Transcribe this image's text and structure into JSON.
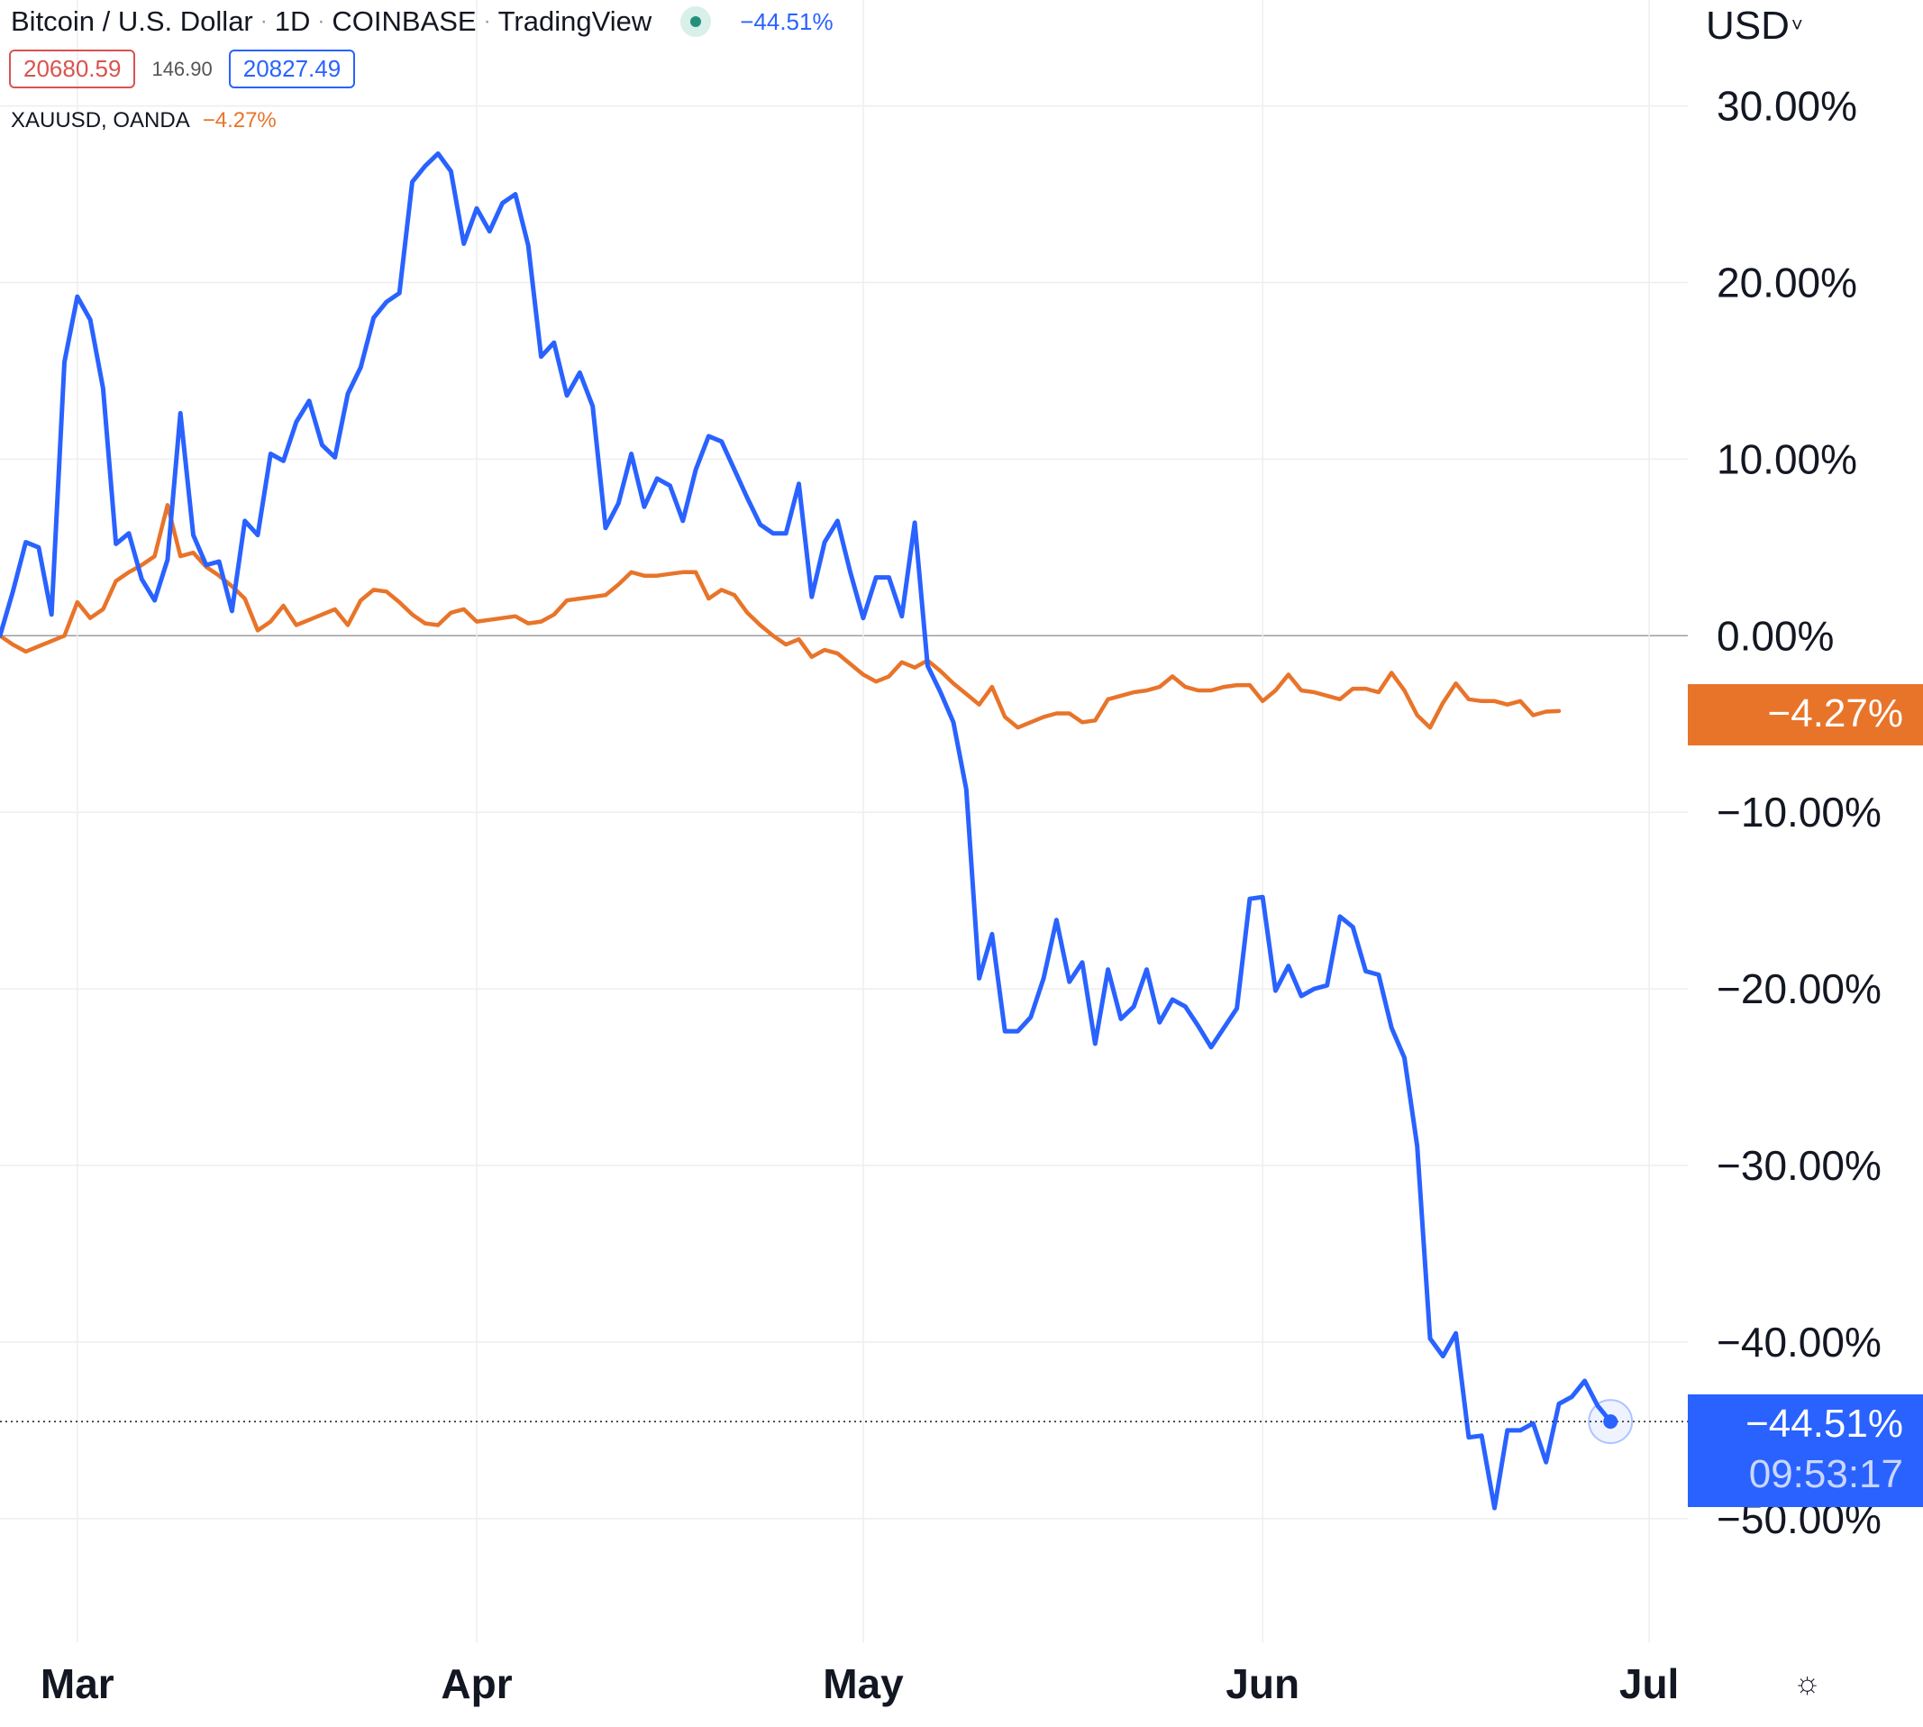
{
  "header": {
    "symbol": "Bitcoin / U.S. Dollar",
    "interval": "1D",
    "exchange": "COINBASE",
    "source": "TradingView",
    "change": "−44.51%",
    "bid": "20680.59",
    "spread": "146.90",
    "ask": "20827.49",
    "compare_symbol": "XAUUSD, OANDA",
    "compare_change": "−4.27%",
    "currency": "USD",
    "currency_caret": "˅"
  },
  "badges": {
    "gold_value": "−4.27%",
    "btc_value": "−44.51%",
    "btc_countdown": "09:53:17"
  },
  "settings_icon": "gear-icon",
  "colors": {
    "btc": "#2962ff",
    "gold": "#e8742a",
    "grid": "#eeeeee",
    "zero": "#9e9e9e"
  },
  "chart_data": {
    "type": "line",
    "x_unit": "days since Feb 22",
    "xlim": [
      0,
      131
    ],
    "ylim": [
      -57,
      36
    ],
    "grid": true,
    "y_ticks": [
      30,
      20,
      10,
      0,
      -10,
      -20,
      -30,
      -40,
      -50
    ],
    "y_tick_labels": [
      "30.00%",
      "20.00%",
      "10.00%",
      "0.00%",
      "−10.00%",
      "−20.00%",
      "−30.00%",
      "−40.00%",
      "−50.00%"
    ],
    "x_tick_labels": [
      {
        "label": "Mar",
        "x": 6
      },
      {
        "label": "Apr",
        "x": 37
      },
      {
        "label": "May",
        "x": 67
      },
      {
        "label": "Jun",
        "x": 98
      },
      {
        "label": "Jul",
        "x": 128
      }
    ],
    "series": [
      {
        "name": "Bitcoin / U.S. Dollar",
        "color": "#2962ff",
        "points": [
          [
            0,
            0
          ],
          [
            1,
            2.5
          ],
          [
            2,
            5.3
          ],
          [
            3,
            5
          ],
          [
            4,
            1.2
          ],
          [
            5,
            15.5
          ],
          [
            6,
            19.2
          ],
          [
            7,
            17.9
          ],
          [
            8,
            14
          ],
          [
            9,
            5.2
          ],
          [
            10,
            5.8
          ],
          [
            11,
            3.2
          ],
          [
            12,
            2
          ],
          [
            13,
            4.3
          ],
          [
            14,
            12.6
          ],
          [
            15,
            5.7
          ],
          [
            16,
            4
          ],
          [
            17,
            4.2
          ],
          [
            18,
            1.4
          ],
          [
            19,
            6.5
          ],
          [
            20,
            5.7
          ],
          [
            21,
            10.3
          ],
          [
            22,
            9.9
          ],
          [
            23,
            12.1
          ],
          [
            24,
            13.3
          ],
          [
            25,
            10.8
          ],
          [
            26,
            10.1
          ],
          [
            27,
            13.7
          ],
          [
            28,
            15.2
          ],
          [
            29,
            18
          ],
          [
            30,
            18.9
          ],
          [
            31,
            19.4
          ],
          [
            32,
            25.7
          ],
          [
            33,
            26.6
          ],
          [
            34,
            27.3
          ],
          [
            35,
            26.3
          ],
          [
            36,
            22.2
          ],
          [
            37,
            24.2
          ],
          [
            38,
            22.9
          ],
          [
            39,
            24.5
          ],
          [
            40,
            25
          ],
          [
            41,
            22.1
          ],
          [
            42,
            15.8
          ],
          [
            43,
            16.6
          ],
          [
            44,
            13.6
          ],
          [
            45,
            14.9
          ],
          [
            46,
            13
          ],
          [
            47,
            6.1
          ],
          [
            48,
            7.5
          ],
          [
            49,
            10.3
          ],
          [
            50,
            7.3
          ],
          [
            51,
            8.9
          ],
          [
            52,
            8.5
          ],
          [
            53,
            6.5
          ],
          [
            54,
            9.4
          ],
          [
            55,
            11.3
          ],
          [
            56,
            11
          ],
          [
            57,
            9.4
          ],
          [
            58,
            7.8
          ],
          [
            59,
            6.3
          ],
          [
            60,
            5.8
          ],
          [
            61,
            5.8
          ],
          [
            62,
            8.6
          ],
          [
            63,
            2.2
          ],
          [
            64,
            5.3
          ],
          [
            65,
            6.5
          ],
          [
            66,
            3.6
          ],
          [
            67,
            1
          ],
          [
            68,
            3.3
          ],
          [
            69,
            3.3
          ],
          [
            70,
            1.1
          ],
          [
            71,
            6.4
          ],
          [
            72,
            -1.7
          ],
          [
            73,
            -3.2
          ],
          [
            74,
            -4.9
          ],
          [
            75,
            -8.7
          ],
          [
            76,
            -19.4
          ],
          [
            77,
            -16.9
          ],
          [
            78,
            -22.4
          ],
          [
            79,
            -22.4
          ],
          [
            80,
            -21.6
          ],
          [
            81,
            -19.4
          ],
          [
            82,
            -16.1
          ],
          [
            83,
            -19.6
          ],
          [
            84,
            -18.5
          ],
          [
            85,
            -23.1
          ],
          [
            86,
            -18.9
          ],
          [
            87,
            -21.7
          ],
          [
            88,
            -21
          ],
          [
            89,
            -18.9
          ],
          [
            90,
            -21.9
          ],
          [
            91,
            -20.6
          ],
          [
            92,
            -21
          ],
          [
            93,
            -22.1
          ],
          [
            94,
            -23.3
          ],
          [
            95,
            -22.2
          ],
          [
            96,
            -21.1
          ],
          [
            97,
            -14.9
          ],
          [
            98,
            -14.8
          ],
          [
            99,
            -20.1
          ],
          [
            100,
            -18.7
          ],
          [
            101,
            -20.4
          ],
          [
            102,
            -20
          ],
          [
            103,
            -19.8
          ],
          [
            104,
            -15.9
          ],
          [
            105,
            -16.5
          ],
          [
            106,
            -19
          ],
          [
            107,
            -19.2
          ],
          [
            108,
            -22.2
          ],
          [
            109,
            -23.9
          ],
          [
            110,
            -28.9
          ],
          [
            111,
            -39.8
          ],
          [
            112,
            -40.8
          ],
          [
            113,
            -39.5
          ],
          [
            114,
            -45.4
          ],
          [
            115,
            -45.3
          ],
          [
            116,
            -49.4
          ],
          [
            117,
            -45
          ],
          [
            118,
            -45
          ],
          [
            119,
            -44.6
          ],
          [
            120,
            -46.8
          ],
          [
            121,
            -43.5
          ],
          [
            122,
            -43.1
          ],
          [
            123,
            -42.2
          ],
          [
            124,
            -43.6
          ],
          [
            125,
            -44.5
          ]
        ]
      },
      {
        "name": "XAUUSD, OANDA",
        "color": "#e8742a",
        "points": [
          [
            0,
            0
          ],
          [
            1,
            -0.5
          ],
          [
            2,
            -0.9
          ],
          [
            3,
            -0.6
          ],
          [
            4,
            -0.3
          ],
          [
            5,
            0
          ],
          [
            6,
            1.9
          ],
          [
            7,
            1
          ],
          [
            8,
            1.5
          ],
          [
            9,
            3.1
          ],
          [
            10,
            3.6
          ],
          [
            11,
            4
          ],
          [
            12,
            4.5
          ],
          [
            13,
            7.4
          ],
          [
            14,
            4.5
          ],
          [
            15,
            4.7
          ],
          [
            16,
            3.9
          ],
          [
            17,
            3.4
          ],
          [
            18,
            2.8
          ],
          [
            19,
            2.1
          ],
          [
            20,
            0.3
          ],
          [
            21,
            0.8
          ],
          [
            22,
            1.7
          ],
          [
            23,
            0.6
          ],
          [
            24,
            0.9
          ],
          [
            25,
            1.2
          ],
          [
            26,
            1.5
          ],
          [
            27,
            0.6
          ],
          [
            28,
            2
          ],
          [
            29,
            2.6
          ],
          [
            30,
            2.5
          ],
          [
            31,
            1.9
          ],
          [
            32,
            1.2
          ],
          [
            33,
            0.7
          ],
          [
            34,
            0.6
          ],
          [
            35,
            1.3
          ],
          [
            36,
            1.5
          ],
          [
            37,
            0.8
          ],
          [
            38,
            0.9
          ],
          [
            39,
            1
          ],
          [
            40,
            1.1
          ],
          [
            41,
            0.7
          ],
          [
            42,
            0.8
          ],
          [
            43,
            1.2
          ],
          [
            44,
            2
          ],
          [
            45,
            2.1
          ],
          [
            46,
            2.2
          ],
          [
            47,
            2.3
          ],
          [
            48,
            2.9
          ],
          [
            49,
            3.6
          ],
          [
            50,
            3.4
          ],
          [
            51,
            3.4
          ],
          [
            52,
            3.5
          ],
          [
            53,
            3.6
          ],
          [
            54,
            3.6
          ],
          [
            55,
            2.1
          ],
          [
            56,
            2.6
          ],
          [
            57,
            2.3
          ],
          [
            58,
            1.3
          ],
          [
            59,
            0.6
          ],
          [
            60,
            0
          ],
          [
            61,
            -0.5
          ],
          [
            62,
            -0.2
          ],
          [
            63,
            -1.2
          ],
          [
            64,
            -0.8
          ],
          [
            65,
            -1
          ],
          [
            66,
            -1.6
          ],
          [
            67,
            -2.2
          ],
          [
            68,
            -2.6
          ],
          [
            69,
            -2.3
          ],
          [
            70,
            -1.5
          ],
          [
            71,
            -1.8
          ],
          [
            72,
            -1.4
          ],
          [
            73,
            -2
          ],
          [
            74,
            -2.7
          ],
          [
            75,
            -3.3
          ],
          [
            76,
            -3.9
          ],
          [
            77,
            -2.9
          ],
          [
            78,
            -4.6
          ],
          [
            79,
            -5.2
          ],
          [
            80,
            -4.9
          ],
          [
            81,
            -4.6
          ],
          [
            82,
            -4.4
          ],
          [
            83,
            -4.4
          ],
          [
            84,
            -4.9
          ],
          [
            85,
            -4.8
          ],
          [
            86,
            -3.6
          ],
          [
            87,
            -3.4
          ],
          [
            88,
            -3.2
          ],
          [
            89,
            -3.1
          ],
          [
            90,
            -2.9
          ],
          [
            91,
            -2.3
          ],
          [
            92,
            -2.9
          ],
          [
            93,
            -3.1
          ],
          [
            94,
            -3.1
          ],
          [
            95,
            -2.9
          ],
          [
            96,
            -2.8
          ],
          [
            97,
            -2.8
          ],
          [
            98,
            -3.7
          ],
          [
            99,
            -3.1
          ],
          [
            100,
            -2.2
          ],
          [
            101,
            -3.1
          ],
          [
            102,
            -3.2
          ],
          [
            103,
            -3.4
          ],
          [
            104,
            -3.6
          ],
          [
            105,
            -3
          ],
          [
            106,
            -3
          ],
          [
            107,
            -3.2
          ],
          [
            108,
            -2.1
          ],
          [
            109,
            -3.1
          ],
          [
            110,
            -4.5
          ],
          [
            111,
            -5.2
          ],
          [
            112,
            -3.8
          ],
          [
            113,
            -2.7
          ],
          [
            114,
            -3.6
          ],
          [
            115,
            -3.7
          ],
          [
            116,
            -3.7
          ],
          [
            117,
            -3.9
          ],
          [
            118,
            -3.7
          ],
          [
            119,
            -4.5
          ],
          [
            120,
            -4.3
          ],
          [
            121,
            -4.27
          ]
        ]
      }
    ]
  }
}
